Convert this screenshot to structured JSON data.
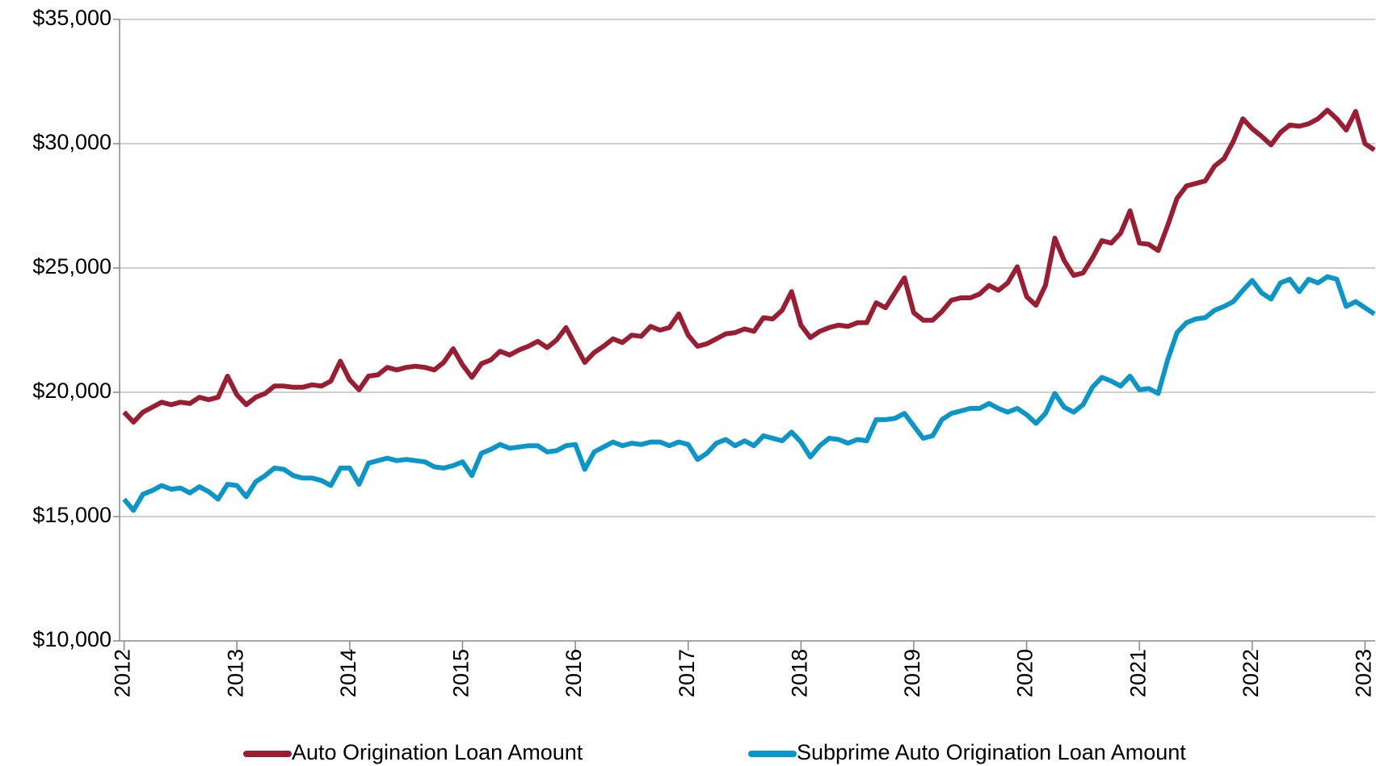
{
  "chart_data": {
    "type": "line",
    "x": [
      2012,
      2012.083,
      2012.167,
      2012.25,
      2012.333,
      2012.417,
      2012.5,
      2012.583,
      2012.667,
      2012.75,
      2012.833,
      2012.917,
      2013,
      2013.083,
      2013.167,
      2013.25,
      2013.333,
      2013.417,
      2013.5,
      2013.583,
      2013.667,
      2013.75,
      2013.833,
      2013.917,
      2014,
      2014.083,
      2014.167,
      2014.25,
      2014.333,
      2014.417,
      2014.5,
      2014.583,
      2014.667,
      2014.75,
      2014.833,
      2014.917,
      2015,
      2015.083,
      2015.167,
      2015.25,
      2015.333,
      2015.417,
      2015.5,
      2015.583,
      2015.667,
      2015.75,
      2015.833,
      2015.917,
      2016,
      2016.083,
      2016.167,
      2016.25,
      2016.333,
      2016.417,
      2016.5,
      2016.583,
      2016.667,
      2016.75,
      2016.833,
      2016.917,
      2017,
      2017.083,
      2017.167,
      2017.25,
      2017.333,
      2017.417,
      2017.5,
      2017.583,
      2017.667,
      2017.75,
      2017.833,
      2017.917,
      2018,
      2018.083,
      2018.167,
      2018.25,
      2018.333,
      2018.417,
      2018.5,
      2018.583,
      2018.667,
      2018.75,
      2018.833,
      2018.917,
      2019,
      2019.083,
      2019.167,
      2019.25,
      2019.333,
      2019.417,
      2019.5,
      2019.583,
      2019.667,
      2019.75,
      2019.833,
      2019.917,
      2020,
      2020.083,
      2020.167,
      2020.25,
      2020.333,
      2020.417,
      2020.5,
      2020.583,
      2020.667,
      2020.75,
      2020.833,
      2020.917,
      2021,
      2021.083,
      2021.167,
      2021.25,
      2021.333,
      2021.417,
      2021.5,
      2021.583,
      2021.667,
      2021.75,
      2021.833,
      2021.917,
      2022,
      2022.083,
      2022.167,
      2022.25,
      2022.333,
      2022.417,
      2022.5,
      2022.583,
      2022.667,
      2022.75,
      2022.833,
      2022.917,
      2023,
      2023.083
    ],
    "series": [
      {
        "name": "Auto Origination Loan Amount",
        "color": "#9b1d32",
        "values": [
          19200,
          18800,
          19200,
          19400,
          19600,
          19500,
          19600,
          19550,
          19800,
          19700,
          19800,
          20650,
          19900,
          19500,
          19800,
          19950,
          20250,
          20250,
          20200,
          20200,
          20300,
          20250,
          20450,
          21250,
          20500,
          20100,
          20650,
          20700,
          21000,
          20900,
          21000,
          21050,
          21000,
          20900,
          21200,
          21750,
          21100,
          20600,
          21150,
          21300,
          21650,
          21500,
          21700,
          21850,
          22050,
          21800,
          22100,
          22600,
          21900,
          21200,
          21600,
          21850,
          22150,
          22000,
          22300,
          22250,
          22650,
          22500,
          22600,
          23150,
          22300,
          21850,
          21950,
          22150,
          22350,
          22400,
          22550,
          22450,
          23000,
          22950,
          23300,
          24050,
          22700,
          22200,
          22450,
          22600,
          22700,
          22650,
          22800,
          22800,
          23600,
          23400,
          24000,
          24600,
          23200,
          22900,
          22900,
          23250,
          23700,
          23800,
          23800,
          23950,
          24300,
          24100,
          24400,
          25050,
          23850,
          23500,
          24300,
          26200,
          25300,
          24700,
          24800,
          25400,
          26100,
          26000,
          26400,
          27300,
          26000,
          25950,
          25700,
          26700,
          27800,
          28300,
          28400,
          28500,
          29100,
          29400,
          30100,
          31000,
          30600,
          30300,
          29950,
          30450,
          30750,
          30700,
          30800,
          31000,
          31350,
          31000,
          30550,
          31300,
          30000,
          29750
        ]
      },
      {
        "name": "Subprime Auto Origination Loan Amount",
        "color": "#0a96c9",
        "values": [
          15700,
          15250,
          15900,
          16050,
          16250,
          16100,
          16150,
          15950,
          16200,
          16000,
          15700,
          16300,
          16250,
          15800,
          16400,
          16650,
          16950,
          16900,
          16650,
          16550,
          16550,
          16450,
          16250,
          16950,
          16950,
          16300,
          17150,
          17250,
          17350,
          17250,
          17300,
          17250,
          17200,
          17000,
          16950,
          17050,
          17200,
          16650,
          17550,
          17700,
          17900,
          17750,
          17800,
          17850,
          17850,
          17600,
          17650,
          17850,
          17900,
          16900,
          17600,
          17800,
          18000,
          17850,
          17950,
          17900,
          18000,
          18000,
          17850,
          18000,
          17900,
          17300,
          17550,
          17950,
          18100,
          17850,
          18050,
          17850,
          18250,
          18150,
          18050,
          18400,
          18000,
          17400,
          17850,
          18150,
          18100,
          17950,
          18100,
          18050,
          18900,
          18900,
          18950,
          19150,
          18650,
          18150,
          18250,
          18900,
          19150,
          19250,
          19350,
          19350,
          19550,
          19350,
          19200,
          19350,
          19100,
          18750,
          19150,
          19950,
          19400,
          19200,
          19500,
          20200,
          20600,
          20450,
          20250,
          20650,
          20100,
          20150,
          19950,
          21300,
          22400,
          22800,
          22950,
          23000,
          23300,
          23450,
          23650,
          24100,
          24500,
          24000,
          23750,
          24400,
          24550,
          24050,
          24550,
          24400,
          24650,
          24550,
          23450,
          23650,
          23400,
          23150
        ]
      }
    ],
    "xlim": [
      2011.96,
      2023.09
    ],
    "xticks": [
      2012,
      2013,
      2014,
      2015,
      2016,
      2017,
      2018,
      2019,
      2020,
      2021,
      2022,
      2023
    ],
    "ylim": [
      10000,
      35000
    ],
    "yticks": [
      {
        "value": 10000,
        "label": "$10,000"
      },
      {
        "value": 15000,
        "label": "$15,000"
      },
      {
        "value": 20000,
        "label": "$20,000"
      },
      {
        "value": 25000,
        "label": "$25,000"
      },
      {
        "value": 30000,
        "label": "$30,000"
      },
      {
        "value": 35000,
        "label": "$35,000"
      }
    ],
    "grid": true,
    "legend": "bottom"
  }
}
